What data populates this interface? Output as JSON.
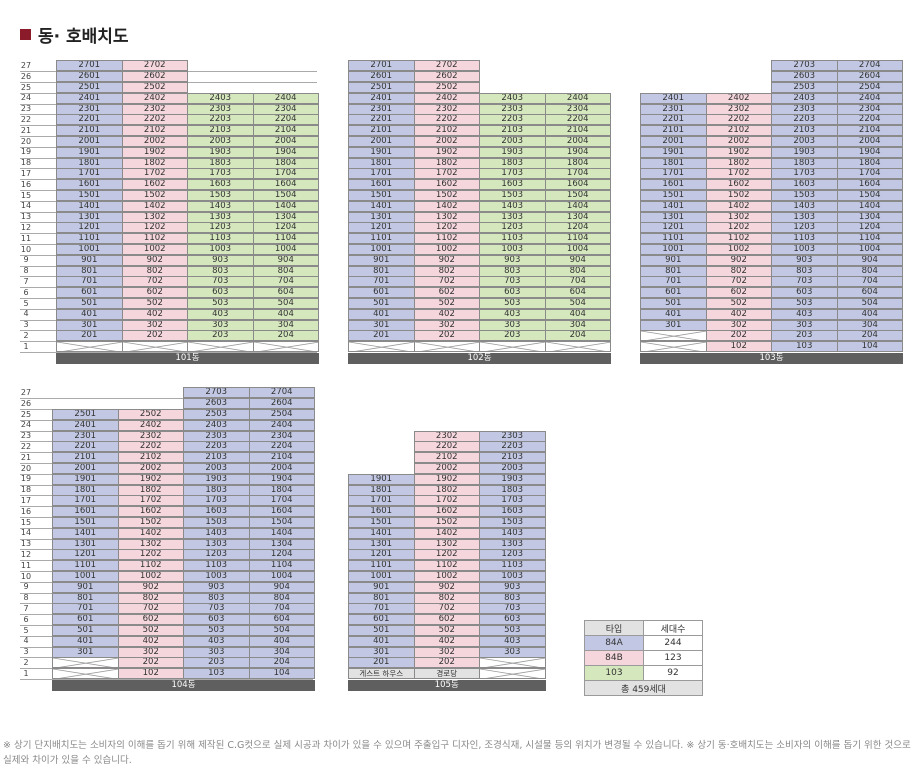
{
  "title": "동· 호배치도",
  "footnote": "※ 상기 단지배치도는 소비자의 이해를 돕기 위해 제작된 C.G컷으로 실제 시공과 차이가 있을 수 있으며 주출입구 디자인, 조경식재, 시설물 등의 위치가 변경될 수 있습니다. ※ 상기 동·호배치도는 소비자의 이해를 돕기 위한 것으로 실제와 차이가 있을 수 있습니다.",
  "colors": {
    "A": "#c2c8e3",
    "B": "#f4d6dc",
    "C": "#d5e7bd"
  },
  "floor_labels": [
    "1",
    "2",
    "3",
    "4",
    "5",
    "6",
    "7",
    "8",
    "9",
    "10",
    "11",
    "12",
    "13",
    "14",
    "15",
    "16",
    "17",
    "18",
    "19",
    "20",
    "21",
    "22",
    "23",
    "24",
    "25",
    "26",
    "27"
  ],
  "buildings": [
    {
      "label": "101동",
      "columns": [
        {
          "line": "01",
          "type": "A",
          "bottom": 1,
          "top": 27,
          "special": {
            "1": "X"
          }
        },
        {
          "line": "02",
          "type": "B",
          "bottom": 1,
          "top": 27,
          "special": {
            "1": "X"
          }
        },
        {
          "line": "03",
          "type": "C",
          "bottom": 1,
          "top": 24,
          "special": {
            "1": "X"
          }
        },
        {
          "line": "04",
          "type": "C",
          "bottom": 1,
          "top": 24,
          "special": {
            "1": "X"
          }
        }
      ]
    },
    {
      "label": "102동",
      "columns": [
        {
          "line": "01",
          "type": "A",
          "bottom": 1,
          "top": 27,
          "special": {
            "1": "X"
          }
        },
        {
          "line": "02",
          "type": "B",
          "bottom": 1,
          "top": 27,
          "special": {
            "1": "X"
          }
        },
        {
          "line": "03",
          "type": "C",
          "bottom": 1,
          "top": 24,
          "special": {
            "1": "X"
          }
        },
        {
          "line": "04",
          "type": "C",
          "bottom": 1,
          "top": 24,
          "special": {
            "1": "X"
          }
        }
      ]
    },
    {
      "label": "103동",
      "columns": [
        {
          "line": "01",
          "type": "A",
          "bottom": 1,
          "top": 24,
          "special": {
            "1": "X",
            "2": "X"
          }
        },
        {
          "line": "02",
          "type": "B",
          "bottom": 1,
          "top": 24
        },
        {
          "line": "03",
          "type": "A",
          "bottom": 1,
          "top": 27
        },
        {
          "line": "04",
          "type": "A",
          "bottom": 1,
          "top": 27
        }
      ]
    },
    {
      "label": "104동",
      "columns": [
        {
          "line": "01",
          "type": "A",
          "bottom": 1,
          "top": 25,
          "special": {
            "1": "X",
            "2": "X"
          }
        },
        {
          "line": "02",
          "type": "B",
          "bottom": 1,
          "top": 25
        },
        {
          "line": "03",
          "type": "A",
          "bottom": 1,
          "top": 27
        },
        {
          "line": "04",
          "type": "A",
          "bottom": 1,
          "top": 27
        }
      ]
    },
    {
      "label": "105동",
      "columns": [
        {
          "line": "01",
          "type": "A",
          "bottom": 1,
          "top": 19,
          "special": {
            "1": "게스트 하우스"
          }
        },
        {
          "line": "02",
          "type": "B",
          "bottom": 1,
          "top": 23,
          "special": {
            "1": "경로당"
          }
        },
        {
          "line": "03",
          "type": "A",
          "bottom": 1,
          "top": 23,
          "special": {
            "1": "X",
            "2": "X"
          }
        }
      ]
    }
  ],
  "legend": {
    "headers": [
      "타입",
      "세대수"
    ],
    "rows": [
      {
        "type": "84A",
        "count": "244",
        "color": "A"
      },
      {
        "type": "84B",
        "count": "123",
        "color": "B"
      },
      {
        "type": "103",
        "count": "92",
        "color": "C"
      }
    ],
    "total": "총 459세대"
  }
}
